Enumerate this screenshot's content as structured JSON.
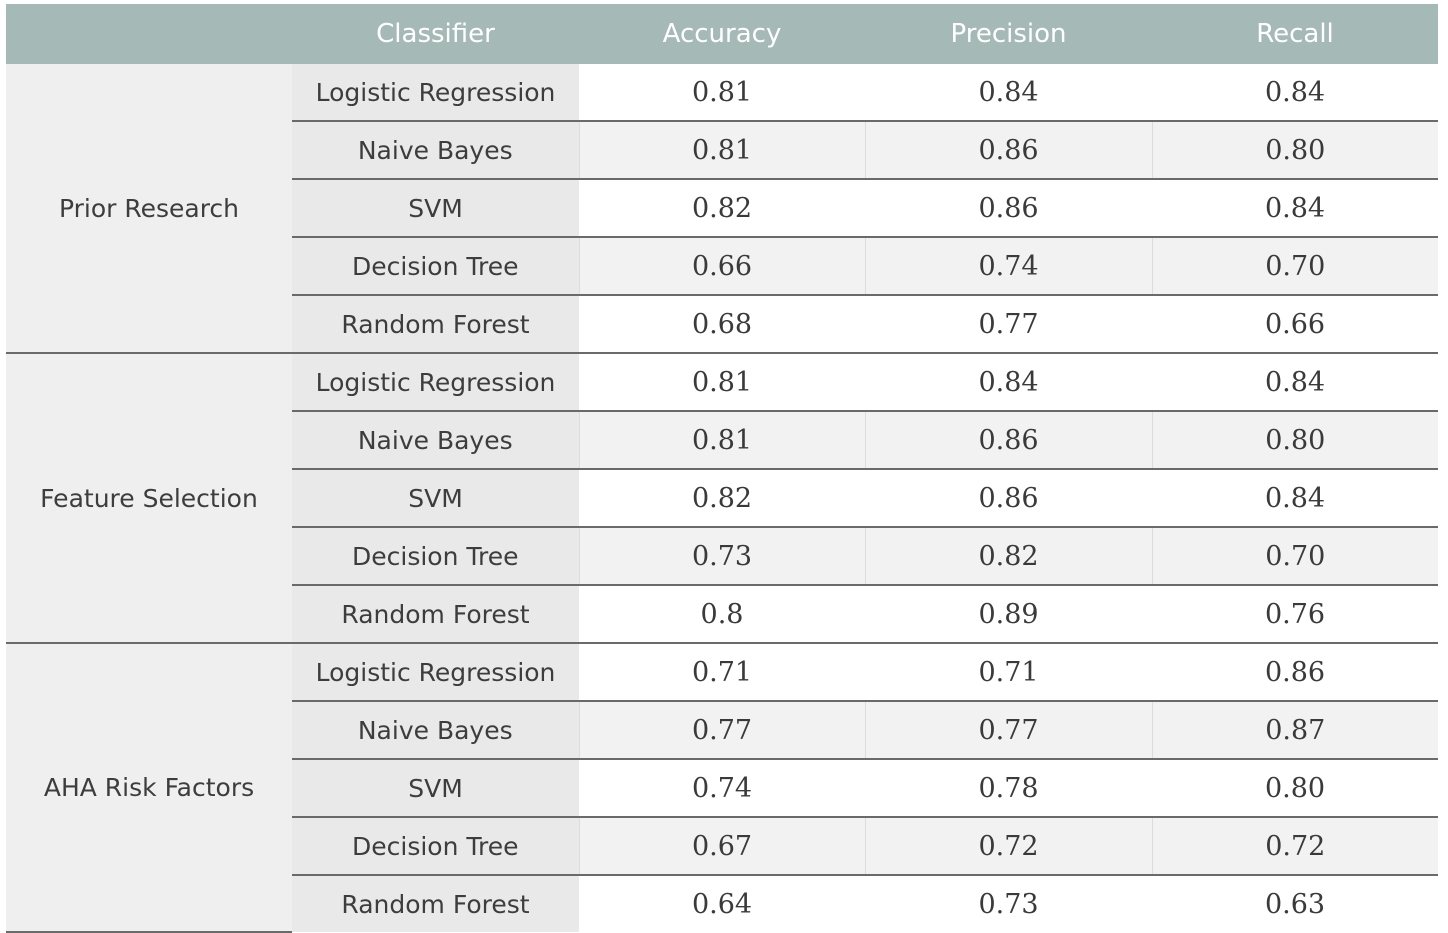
{
  "columns": [
    "",
    "Classifier",
    "Accuracy",
    "Precision",
    "Recall"
  ],
  "groups": [
    {
      "name": "Prior Research",
      "rows": [
        {
          "classifier": "Logistic Regression",
          "accuracy": "0.81",
          "precision": "0.84",
          "recall": "0.84"
        },
        {
          "classifier": "Naive Bayes",
          "accuracy": "0.81",
          "precision": "0.86",
          "recall": "0.80"
        },
        {
          "classifier": "SVM",
          "accuracy": "0.82",
          "precision": "0.86",
          "recall": "0.84"
        },
        {
          "classifier": "Decision Tree",
          "accuracy": "0.66",
          "precision": "0.74",
          "recall": "0.70"
        },
        {
          "classifier": "Random Forest",
          "accuracy": "0.68",
          "precision": "0.77",
          "recall": "0.66"
        }
      ]
    },
    {
      "name": "Feature Selection",
      "rows": [
        {
          "classifier": "Logistic Regression",
          "accuracy": "0.81",
          "precision": "0.84",
          "recall": "0.84"
        },
        {
          "classifier": "Naive Bayes",
          "accuracy": "0.81",
          "precision": "0.86",
          "recall": "0.80"
        },
        {
          "classifier": "SVM",
          "accuracy": "0.82",
          "precision": "0.86",
          "recall": "0.84"
        },
        {
          "classifier": "Decision Tree",
          "accuracy": "0.73",
          "precision": "0.82",
          "recall": "0.70"
        },
        {
          "classifier": "Random Forest",
          "accuracy": "0.8",
          "precision": "0.89",
          "recall": "0.76"
        }
      ]
    },
    {
      "name": "AHA Risk Factors",
      "rows": [
        {
          "classifier": "Logistic Regression",
          "accuracy": "0.71",
          "precision": "0.71",
          "recall": "0.86"
        },
        {
          "classifier": "Naive Bayes",
          "accuracy": "0.77",
          "precision": "0.77",
          "recall": "0.87"
        },
        {
          "classifier": "SVM",
          "accuracy": "0.74",
          "precision": "0.78",
          "recall": "0.80"
        },
        {
          "classifier": "Decision Tree",
          "accuracy": "0.67",
          "precision": "0.72",
          "recall": "0.72"
        },
        {
          "classifier": "Random Forest",
          "accuracy": "0.64",
          "precision": "0.73",
          "recall": "0.63"
        }
      ]
    }
  ]
}
